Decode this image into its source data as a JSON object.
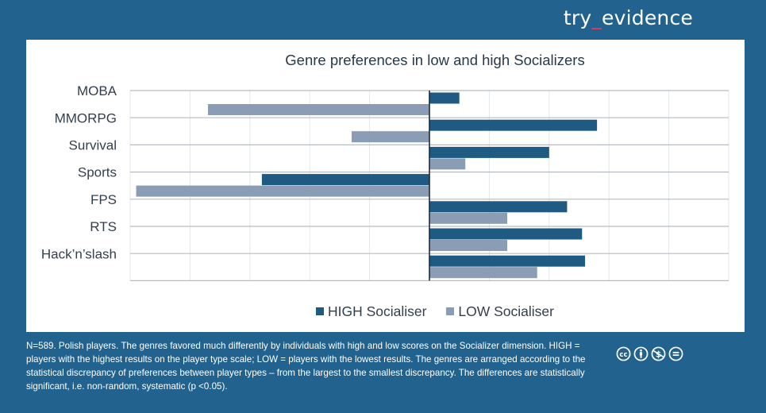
{
  "brand": {
    "prefix": "try",
    "underscore": "_",
    "suffix": "evidence",
    "accent_color": "#e23a5e"
  },
  "chart_data": {
    "type": "bar",
    "orientation": "horizontal",
    "title": "Genre preferences in low and high Socializers",
    "xlabel": "",
    "ylabel": "",
    "xlim": [
      -5,
      5
    ],
    "grid": true,
    "tick_labels_shown": false,
    "legend_position": "bottom",
    "categories": [
      "MOBA",
      "MMORPG",
      "Survival",
      "Sports",
      "FPS",
      "RTS",
      "Hack’n’slash"
    ],
    "series": [
      {
        "name": "HIGH Socialiser",
        "color": "#1f5a82",
        "values": [
          0.5,
          2.8,
          2.0,
          -2.8,
          2.3,
          2.55,
          2.6
        ]
      },
      {
        "name": "LOW Socialiser",
        "color": "#8a9db5",
        "values": [
          -3.7,
          -1.3,
          0.6,
          -4.9,
          1.3,
          1.3,
          1.8
        ]
      }
    ]
  },
  "footnote": "N=589. Polish players. The genres favored much differently by individuals with high and low scores on the Socializer dimension. HIGH = players with the highest results on the player type scale; LOW = players with the lowest results. The genres are arranged according to the statistical discrepancy of preferences between player types – from the largest to the smallest discrepancy. The differences are statistically significant, i.e. non-random, systematic (p <0.05).",
  "license_icons": [
    "cc-icon",
    "attribution-icon",
    "noncommercial-icon",
    "noderivatives-icon"
  ]
}
